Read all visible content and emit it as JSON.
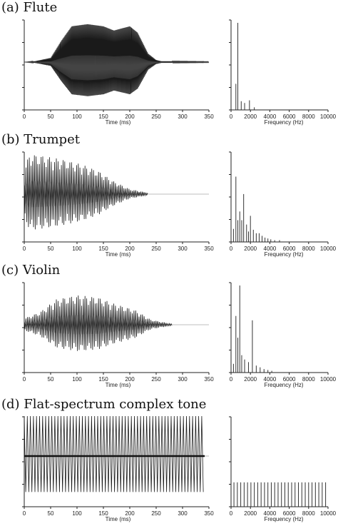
{
  "figure": {
    "panels": [
      {
        "title": "(a) Flute",
        "waveform": {
          "xlabel": "Time (ms)",
          "xticks": [
            "0",
            "50",
            "100",
            "150",
            "200",
            "250",
            "300",
            "350"
          ],
          "xlim": [
            0,
            350
          ],
          "duration_ms": 350,
          "signal_end_ms": 350,
          "envelope": [
            [
              0,
              0.0
            ],
            [
              20,
              0.02
            ],
            [
              50,
              0.1
            ],
            [
              70,
              0.5
            ],
            [
              90,
              0.85
            ],
            [
              120,
              0.9
            ],
            [
              150,
              0.85
            ],
            [
              170,
              0.75
            ],
            [
              200,
              0.85
            ],
            [
              215,
              0.7
            ],
            [
              235,
              0.2
            ],
            [
              250,
              0.05
            ],
            [
              260,
              0.02
            ],
            [
              350,
              0.01
            ]
          ],
          "style": "dense"
        },
        "spectrum": {
          "xlabel": "Frequency (Hz)",
          "xticks": [
            "0",
            "2000",
            "4000",
            "6000",
            "8000",
            "10000"
          ],
          "xlim": [
            0,
            10000
          ],
          "peaks": [
            [
              500,
              0.3
            ],
            [
              700,
              1.0
            ],
            [
              1050,
              0.1
            ],
            [
              1400,
              0.08
            ],
            [
              1900,
              0.11
            ],
            [
              2400,
              0.03
            ]
          ]
        }
      },
      {
        "title": "(b) Trumpet",
        "waveform": {
          "xlabel": "Time (ms)",
          "xticks": [
            "0",
            "50",
            "100",
            "150",
            "200",
            "250",
            "300",
            "350"
          ],
          "xlim": [
            0,
            350
          ],
          "duration_ms": 350,
          "signal_end_ms": 235,
          "envelope": [
            [
              0,
              0.6
            ],
            [
              10,
              0.95
            ],
            [
              40,
              0.9
            ],
            [
              80,
              0.8
            ],
            [
              110,
              0.7
            ],
            [
              140,
              0.55
            ],
            [
              170,
              0.3
            ],
            [
              200,
              0.12
            ],
            [
              235,
              0.03
            ]
          ],
          "style": "sparse"
        },
        "spectrum": {
          "xlabel": "Frequency (Hz)",
          "xticks": [
            "0",
            "2000",
            "4000",
            "6000",
            "8000",
            "10000"
          ],
          "xlim": [
            0,
            10000
          ],
          "peaks": [
            [
              250,
              0.15
            ],
            [
              500,
              0.75
            ],
            [
              700,
              0.25
            ],
            [
              900,
              0.35
            ],
            [
              1100,
              0.25
            ],
            [
              1300,
              0.55
            ],
            [
              1600,
              0.2
            ],
            [
              1800,
              0.12
            ],
            [
              2000,
              0.3
            ],
            [
              2300,
              0.14
            ],
            [
              2600,
              0.1
            ],
            [
              2900,
              0.1
            ],
            [
              3200,
              0.07
            ],
            [
              3500,
              0.05
            ],
            [
              3800,
              0.04
            ],
            [
              4100,
              0.03
            ],
            [
              4500,
              0.02
            ],
            [
              5000,
              0.02
            ]
          ]
        }
      },
      {
        "title": "(c) Violin",
        "waveform": {
          "xlabel": "Time (ms)",
          "xticks": [
            "0",
            "50",
            "100",
            "150",
            "200",
            "250",
            "300",
            "350"
          ],
          "xlim": [
            0,
            350
          ],
          "duration_ms": 350,
          "signal_end_ms": 280,
          "envelope": [
            [
              0,
              0.15
            ],
            [
              30,
              0.3
            ],
            [
              60,
              0.6
            ],
            [
              100,
              0.7
            ],
            [
              140,
              0.65
            ],
            [
              170,
              0.5
            ],
            [
              210,
              0.35
            ],
            [
              240,
              0.12
            ],
            [
              280,
              0.02
            ]
          ],
          "style": "sparse"
        },
        "spectrum": {
          "xlabel": "Frequency (Hz)",
          "xticks": [
            "0",
            "2000",
            "4000",
            "6000",
            "8000",
            "10000"
          ],
          "xlim": [
            0,
            10000
          ],
          "peaks": [
            [
              250,
              0.1
            ],
            [
              500,
              0.65
            ],
            [
              700,
              0.4
            ],
            [
              900,
              1.0
            ],
            [
              1100,
              0.2
            ],
            [
              1400,
              0.15
            ],
            [
              1800,
              0.12
            ],
            [
              2200,
              0.6
            ],
            [
              2600,
              0.08
            ],
            [
              3000,
              0.06
            ],
            [
              3400,
              0.04
            ],
            [
              3800,
              0.03
            ],
            [
              4200,
              0.02
            ]
          ]
        }
      },
      {
        "title": "(d) Flat-spectrum complex tone",
        "waveform": {
          "xlabel": "Time (ms)",
          "xticks": [
            "0",
            "50",
            "100",
            "150",
            "200",
            "250",
            "300",
            "350"
          ],
          "xlim": [
            0,
            350
          ],
          "duration_ms": 350,
          "signal_end_ms": 342,
          "envelope": [
            [
              0,
              0.95
            ],
            [
              342,
              0.95
            ]
          ],
          "style": "flat"
        },
        "spectrum": {
          "xlabel": "Frequency (Hz)",
          "xticks": [
            "0",
            "2000",
            "4000",
            "6000",
            "8000",
            "10000"
          ],
          "xlim": [
            0,
            10000
          ],
          "peaks": [
            [
              300,
              0.28
            ],
            [
              650,
              0.28
            ],
            [
              1000,
              0.28
            ],
            [
              1350,
              0.28
            ],
            [
              1700,
              0.28
            ],
            [
              2050,
              0.28
            ],
            [
              2400,
              0.28
            ],
            [
              2750,
              0.28
            ],
            [
              3100,
              0.28
            ],
            [
              3450,
              0.28
            ],
            [
              3800,
              0.28
            ],
            [
              4150,
              0.28
            ],
            [
              4500,
              0.28
            ],
            [
              4850,
              0.28
            ],
            [
              5200,
              0.28
            ],
            [
              5550,
              0.28
            ],
            [
              5900,
              0.28
            ],
            [
              6250,
              0.28
            ],
            [
              6600,
              0.28
            ],
            [
              6950,
              0.28
            ],
            [
              7300,
              0.28
            ],
            [
              7650,
              0.28
            ],
            [
              8000,
              0.28
            ],
            [
              8350,
              0.28
            ],
            [
              8700,
              0.28
            ],
            [
              9050,
              0.28
            ],
            [
              9400,
              0.28
            ],
            [
              9750,
              0.28
            ]
          ]
        }
      }
    ]
  },
  "chart_data": [
    {
      "type": "line",
      "title": "(a) Flute",
      "xlabel": "Time (ms)",
      "ylabel": "",
      "xlim": [
        0,
        350
      ],
      "x_ticks": [
        0,
        50,
        100,
        150,
        200,
        250,
        300,
        350
      ],
      "series": [
        {
          "values": [
            [
              0,
              0.0
            ],
            [
              50,
              0.1
            ],
            [
              90,
              0.85
            ],
            [
              120,
              0.9
            ],
            [
              150,
              0.85
            ],
            [
              170,
              0.75
            ],
            [
              200,
              0.85
            ],
            [
              235,
              0.2
            ],
            [
              260,
              0.02
            ],
            [
              350,
              0.01
            ]
          ]
        }
      ]
    },
    {
      "type": "bar",
      "title": "(a) Flute",
      "xlabel": "Frequency (Hz)",
      "xlim": [
        0,
        10000
      ],
      "x_ticks": [
        0,
        2000,
        4000,
        6000,
        8000,
        10000
      ],
      "series": [
        {
          "values": [
            [
              500,
              0.3
            ],
            [
              700,
              1.0
            ],
            [
              1050,
              0.1
            ],
            [
              1400,
              0.08
            ],
            [
              1900,
              0.11
            ],
            [
              2400,
              0.03
            ]
          ]
        }
      ]
    },
    {
      "type": "line",
      "title": "(b) Trumpet",
      "xlabel": "Time (ms)",
      "xlim": [
        0,
        350
      ],
      "x_ticks": [
        0,
        50,
        100,
        150,
        200,
        250,
        300,
        350
      ],
      "series": [
        {
          "values": [
            [
              0,
              0.6
            ],
            [
              10,
              0.95
            ],
            [
              40,
              0.9
            ],
            [
              80,
              0.8
            ],
            [
              110,
              0.7
            ],
            [
              140,
              0.55
            ],
            [
              170,
              0.3
            ],
            [
              200,
              0.12
            ],
            [
              235,
              0.03
            ]
          ]
        }
      ]
    },
    {
      "type": "bar",
      "title": "(b) Trumpet",
      "xlabel": "Frequency (Hz)",
      "xlim": [
        0,
        10000
      ],
      "x_ticks": [
        0,
        2000,
        4000,
        6000,
        8000,
        10000
      ],
      "series": [
        {
          "values": [
            [
              500,
              0.75
            ],
            [
              900,
              0.35
            ],
            [
              1300,
              0.55
            ],
            [
              2000,
              0.3
            ],
            [
              2300,
              0.14
            ],
            [
              2900,
              0.1
            ],
            [
              3500,
              0.05
            ],
            [
              4100,
              0.03
            ]
          ]
        }
      ]
    },
    {
      "type": "line",
      "title": "(c) Violin",
      "xlabel": "Time (ms)",
      "xlim": [
        0,
        350
      ],
      "x_ticks": [
        0,
        50,
        100,
        150,
        200,
        250,
        300,
        350
      ],
      "series": [
        {
          "values": [
            [
              0,
              0.15
            ],
            [
              60,
              0.6
            ],
            [
              100,
              0.7
            ],
            [
              140,
              0.65
            ],
            [
              170,
              0.5
            ],
            [
              210,
              0.35
            ],
            [
              240,
              0.12
            ],
            [
              280,
              0.02
            ]
          ]
        }
      ]
    },
    {
      "type": "bar",
      "title": "(c) Violin",
      "xlabel": "Frequency (Hz)",
      "xlim": [
        0,
        10000
      ],
      "x_ticks": [
        0,
        2000,
        4000,
        6000,
        8000,
        10000
      ],
      "series": [
        {
          "values": [
            [
              500,
              0.65
            ],
            [
              700,
              0.4
            ],
            [
              900,
              1.0
            ],
            [
              1400,
              0.15
            ],
            [
              2200,
              0.6
            ],
            [
              3000,
              0.06
            ],
            [
              3800,
              0.03
            ]
          ]
        }
      ]
    },
    {
      "type": "line",
      "title": "(d) Flat-spectrum complex tone",
      "xlabel": "Time (ms)",
      "xlim": [
        0,
        350
      ],
      "x_ticks": [
        0,
        50,
        100,
        150,
        200,
        250,
        300,
        350
      ],
      "series": [
        {
          "values": [
            [
              0,
              0.95
            ],
            [
              342,
              0.95
            ]
          ]
        }
      ]
    },
    {
      "type": "bar",
      "title": "(d) Flat-spectrum complex tone",
      "xlabel": "Frequency (Hz)",
      "xlim": [
        0,
        10000
      ],
      "x_ticks": [
        0,
        2000,
        4000,
        6000,
        8000,
        10000
      ],
      "series": [
        {
          "values": [
            [
              300,
              0.28
            ],
            [
              2050,
              0.28
            ],
            [
              4150,
              0.28
            ],
            [
              6250,
              0.28
            ],
            [
              8350,
              0.28
            ],
            [
              9750,
              0.28
            ]
          ]
        }
      ]
    }
  ]
}
